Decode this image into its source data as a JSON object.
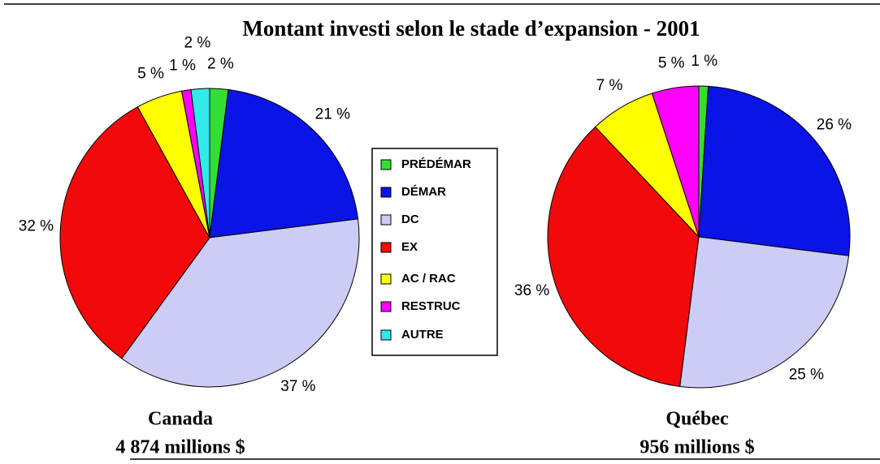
{
  "title": "Montant investi selon le stade d’expansion - 2001",
  "chart_data": [
    {
      "type": "pie",
      "name": "Canada",
      "total": "4 874 millions $",
      "categories": [
        "PRÉDÉMAR",
        "DÉMAR",
        "DC",
        "EX",
        "AC / RAC",
        "RESTRUC",
        "AUTRE"
      ],
      "values": [
        2,
        21,
        37,
        32,
        5,
        1,
        2
      ],
      "value_labels": [
        "2 %",
        "21 %",
        "37 %",
        "32 %",
        "5 %",
        "1 %",
        "2 %"
      ],
      "colors": [
        "#33dd33",
        "#0a14e6",
        "#ccccf5",
        "#f20a0a",
        "#ffff00",
        "#ff00ff",
        "#33eaea"
      ]
    },
    {
      "type": "pie",
      "name": "Québec",
      "total": "956 millions $",
      "categories": [
        "PRÉDÉMAR",
        "DÉMAR",
        "DC",
        "EX",
        "AC / RAC",
        "RESTRUC"
      ],
      "values": [
        1,
        26,
        25,
        36,
        7,
        5
      ],
      "value_labels": [
        "1 %",
        "26 %",
        "25 %",
        "36 %",
        "7 %",
        "5 %"
      ],
      "colors": [
        "#33dd33",
        "#0a14e6",
        "#ccccf5",
        "#f20a0a",
        "#ffff00",
        "#ff00ff"
      ]
    }
  ]
}
